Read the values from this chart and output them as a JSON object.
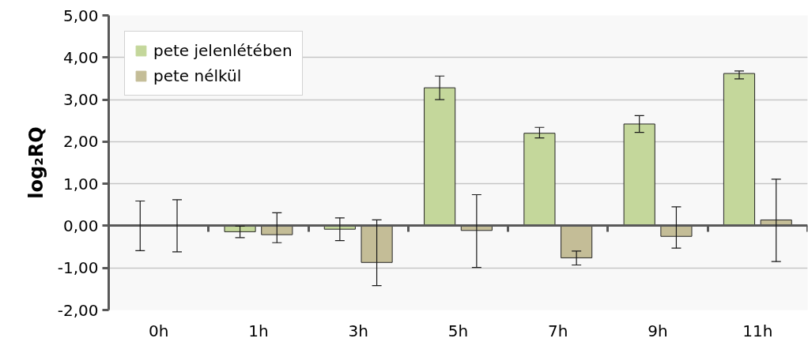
{
  "chart_data": {
    "type": "bar",
    "ylabel": "log₂RQ",
    "categories": [
      "0h",
      "1h",
      "3h",
      "5h",
      "7h",
      "9h",
      "11h"
    ],
    "series": [
      {
        "name": "pete jelenlétében",
        "color": "#c4d79b",
        "values": [
          0,
          -0.14,
          -0.08,
          3.28,
          2.2,
          2.42,
          3.62
        ],
        "errors": [
          0.59,
          [
            -0.28,
            -0.01
          ],
          [
            -0.35,
            0.19
          ],
          [
            3.0,
            3.56
          ],
          [
            2.09,
            2.34
          ],
          [
            2.22,
            2.62
          ],
          [
            3.49,
            3.68
          ]
        ]
      },
      {
        "name": "pete nélkül",
        "color": "#c4bd97",
        "values": [
          0,
          -0.21,
          -0.87,
          -0.11,
          -0.76,
          -0.25,
          0.14
        ],
        "errors": [
          0.62,
          [
            -0.4,
            0.31
          ],
          [
            -1.42,
            0.14
          ],
          [
            -0.99,
            0.74
          ],
          [
            -0.93,
            -0.6
          ],
          [
            -0.53,
            0.45
          ],
          [
            -0.85,
            1.11
          ]
        ]
      }
    ],
    "ylim": [
      -2,
      5
    ],
    "yticks": [
      {
        "value": -2,
        "label": "-2,00"
      },
      {
        "value": -1,
        "label": "-1,00"
      },
      {
        "value": 0,
        "label": "0,00"
      },
      {
        "value": 1,
        "label": "1,00"
      },
      {
        "value": 2,
        "label": "2,00"
      },
      {
        "value": 3,
        "label": "3,00"
      },
      {
        "value": 4,
        "label": "4,00"
      },
      {
        "value": 5,
        "label": "5,00"
      }
    ],
    "grid": "y",
    "legend": "top left"
  }
}
